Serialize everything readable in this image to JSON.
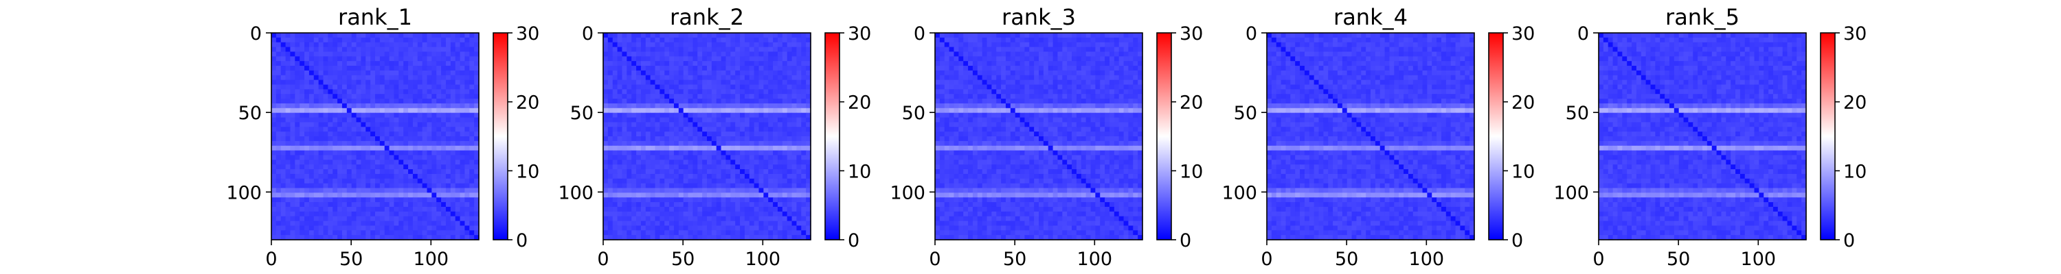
{
  "chart_data": [
    {
      "type": "heatmap",
      "title": "rank_1",
      "xlabel": "",
      "ylabel": "",
      "x_range": [
        0,
        130
      ],
      "y_range": [
        0,
        130
      ],
      "x_ticks": [
        "0",
        "50",
        "100"
      ],
      "y_ticks": [
        "0",
        "50",
        "100"
      ],
      "colorbar": {
        "min": 0,
        "max": 30,
        "ticks": [
          "0",
          "10",
          "20",
          "30"
        ],
        "colormap": "bwr"
      },
      "pattern": {
        "background": 3,
        "diagonal": 1,
        "bright_rows": [
          {
            "center": 48,
            "width": 3,
            "value": 11
          },
          {
            "center": 72,
            "width": 3,
            "value": 8
          },
          {
            "center": 101,
            "width": 3,
            "value": 9
          }
        ]
      }
    },
    {
      "type": "heatmap",
      "title": "rank_2",
      "xlabel": "",
      "ylabel": "",
      "x_range": [
        0,
        130
      ],
      "y_range": [
        0,
        130
      ],
      "x_ticks": [
        "0",
        "50",
        "100"
      ],
      "y_ticks": [
        "0",
        "50",
        "100"
      ],
      "colorbar": {
        "min": 0,
        "max": 30,
        "ticks": [
          "0",
          "10",
          "20",
          "30"
        ],
        "colormap": "bwr"
      },
      "pattern": {
        "background": 3,
        "diagonal": 1,
        "bright_rows": [
          {
            "center": 48,
            "width": 3,
            "value": 11
          },
          {
            "center": 72,
            "width": 3,
            "value": 9
          },
          {
            "center": 101,
            "width": 3,
            "value": 9
          }
        ]
      }
    },
    {
      "type": "heatmap",
      "title": "rank_3",
      "xlabel": "",
      "ylabel": "",
      "x_range": [
        0,
        130
      ],
      "y_range": [
        0,
        130
      ],
      "x_ticks": [
        "0",
        "50",
        "100"
      ],
      "y_ticks": [
        "0",
        "50",
        "100"
      ],
      "colorbar": {
        "min": 0,
        "max": 30,
        "ticks": [
          "0",
          "10",
          "20",
          "30"
        ],
        "colormap": "bwr"
      },
      "pattern": {
        "background": 3,
        "diagonal": 1,
        "bright_rows": [
          {
            "center": 48,
            "width": 3,
            "value": 10
          },
          {
            "center": 72,
            "width": 3,
            "value": 8
          },
          {
            "center": 101,
            "width": 3,
            "value": 9
          }
        ]
      }
    },
    {
      "type": "heatmap",
      "title": "rank_4",
      "xlabel": "",
      "ylabel": "",
      "x_range": [
        0,
        130
      ],
      "y_range": [
        0,
        130
      ],
      "x_ticks": [
        "0",
        "50",
        "100"
      ],
      "y_ticks": [
        "0",
        "50",
        "100"
      ],
      "colorbar": {
        "min": 0,
        "max": 30,
        "ticks": [
          "0",
          "10",
          "20",
          "30"
        ],
        "colormap": "bwr"
      },
      "pattern": {
        "background": 3,
        "diagonal": 1,
        "bright_rows": [
          {
            "center": 48,
            "width": 3,
            "value": 11
          },
          {
            "center": 72,
            "width": 3,
            "value": 8
          },
          {
            "center": 101,
            "width": 3,
            "value": 10
          }
        ]
      }
    },
    {
      "type": "heatmap",
      "title": "rank_5",
      "xlabel": "",
      "ylabel": "",
      "x_range": [
        0,
        130
      ],
      "y_range": [
        0,
        130
      ],
      "x_ticks": [
        "0",
        "50",
        "100"
      ],
      "y_ticks": [
        "0",
        "50",
        "100"
      ],
      "colorbar": {
        "min": 0,
        "max": 30,
        "ticks": [
          "0",
          "10",
          "20",
          "30"
        ],
        "colormap": "bwr"
      },
      "pattern": {
        "background": 3,
        "diagonal": 1,
        "bright_rows": [
          {
            "center": 48,
            "width": 3,
            "value": 11
          },
          {
            "center": 72,
            "width": 3,
            "value": 9
          },
          {
            "center": 101,
            "width": 3,
            "value": 9
          }
        ]
      }
    }
  ]
}
